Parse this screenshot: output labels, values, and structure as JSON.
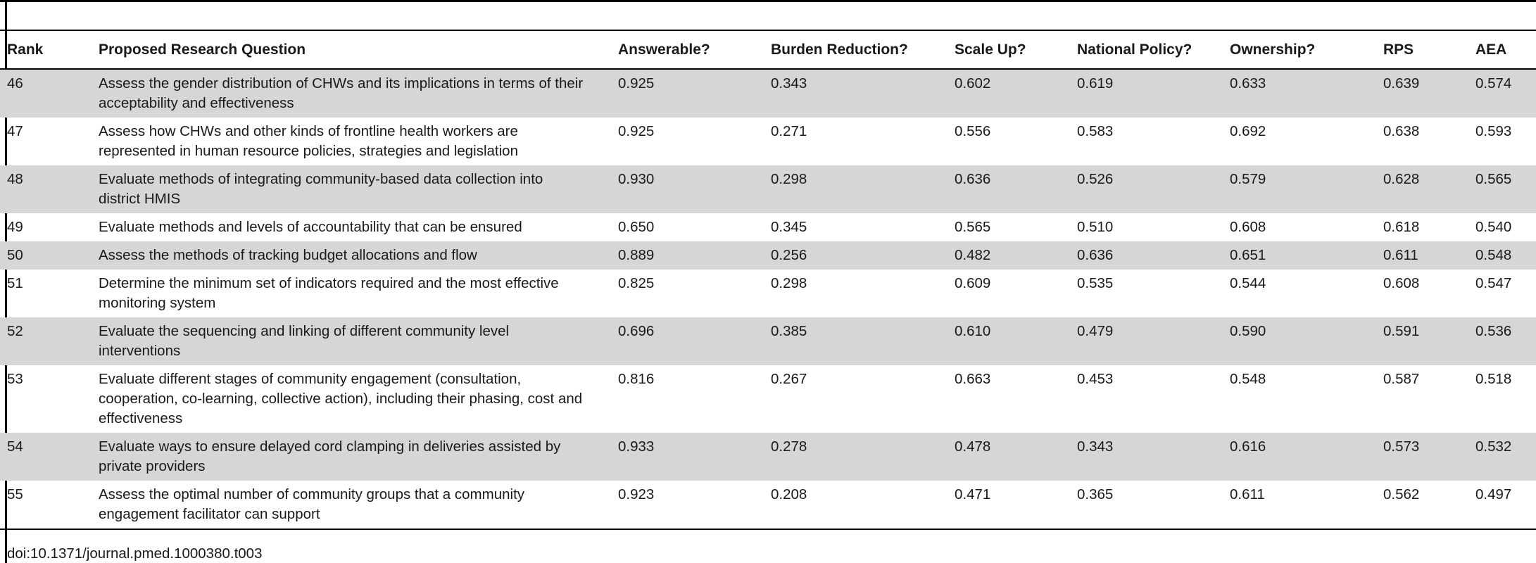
{
  "table": {
    "columns": [
      "Rank",
      "Proposed Research Question",
      "Answerable?",
      "Burden Reduction?",
      "Scale Up?",
      "National Policy?",
      "Ownership?",
      "RPS",
      "AEA"
    ],
    "rows": [
      {
        "rank": "46",
        "question": "Assess the gender distribution of CHWs and its implications in terms of their acceptability and effectiveness",
        "answerable": "0.925",
        "burden_reduction": "0.343",
        "scale_up": "0.602",
        "national_policy": "0.619",
        "ownership": "0.633",
        "rps": "0.639",
        "aea": "0.574"
      },
      {
        "rank": "47",
        "question": "Assess how CHWs and other kinds of frontline health workers are represented in human resource policies, strategies and legislation",
        "answerable": "0.925",
        "burden_reduction": "0.271",
        "scale_up": "0.556",
        "national_policy": "0.583",
        "ownership": "0.692",
        "rps": "0.638",
        "aea": "0.593"
      },
      {
        "rank": "48",
        "question": "Evaluate methods of integrating community-based data collection into district HMIS",
        "answerable": "0.930",
        "burden_reduction": "0.298",
        "scale_up": "0.636",
        "national_policy": "0.526",
        "ownership": "0.579",
        "rps": "0.628",
        "aea": "0.565"
      },
      {
        "rank": "49",
        "question": "Evaluate methods and levels of accountability that can be ensured",
        "answerable": "0.650",
        "burden_reduction": "0.345",
        "scale_up": "0.565",
        "national_policy": "0.510",
        "ownership": "0.608",
        "rps": "0.618",
        "aea": "0.540"
      },
      {
        "rank": "50",
        "question": "Assess the methods of tracking budget allocations and flow",
        "answerable": "0.889",
        "burden_reduction": "0.256",
        "scale_up": "0.482",
        "national_policy": "0.636",
        "ownership": "0.651",
        "rps": "0.611",
        "aea": "0.548"
      },
      {
        "rank": "51",
        "question": "Determine the minimum set of indicators required and the most effective monitoring system",
        "answerable": "0.825",
        "burden_reduction": "0.298",
        "scale_up": "0.609",
        "national_policy": "0.535",
        "ownership": "0.544",
        "rps": "0.608",
        "aea": "0.547"
      },
      {
        "rank": "52",
        "question": "Evaluate the sequencing and linking of different community level interventions",
        "answerable": "0.696",
        "burden_reduction": "0.385",
        "scale_up": "0.610",
        "national_policy": "0.479",
        "ownership": "0.590",
        "rps": "0.591",
        "aea": "0.536"
      },
      {
        "rank": "53",
        "question": "Evaluate different stages of community engagement (consultation, cooperation, co-learning, collective action), including their phasing, cost and effectiveness",
        "answerable": "0.816",
        "burden_reduction": "0.267",
        "scale_up": "0.663",
        "national_policy": "0.453",
        "ownership": "0.548",
        "rps": "0.587",
        "aea": "0.518"
      },
      {
        "rank": "54",
        "question": "Evaluate ways to ensure delayed cord clamping in deliveries assisted by private providers",
        "answerable": "0.933",
        "burden_reduction": "0.278",
        "scale_up": "0.478",
        "national_policy": "0.343",
        "ownership": "0.616",
        "rps": "0.573",
        "aea": "0.532"
      },
      {
        "rank": "55",
        "question": "Assess the optimal number of community groups that a community engagement facilitator can support",
        "answerable": "0.923",
        "burden_reduction": "0.208",
        "scale_up": "0.471",
        "national_policy": "0.365",
        "ownership": "0.611",
        "rps": "0.562",
        "aea": "0.497"
      }
    ]
  },
  "footer": {
    "doi": "doi:10.1371/journal.pmed.1000380.t003"
  }
}
